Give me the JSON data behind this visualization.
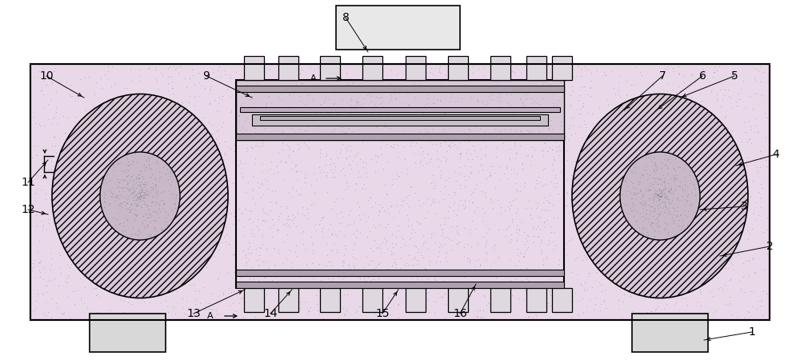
{
  "bg_color": "#ffffff",
  "body_fill": "#e8d8e8",
  "body_dot_color": "#b090b0",
  "central_fill": "#e0d8e0",
  "central_dot_color": "#908090",
  "hatch_diag_color": "#c0b0c0",
  "top_box_fill": "#e8e8e8",
  "teeth_fill": "#e0e0e0",
  "blade_fill": "#d0d0d0",
  "rail_fill": "#d8d8d8",
  "foot_fill": "#d8d8d8",
  "outer_lw": 1.5,
  "inner_lw": 1.0,
  "label_fontsize": 10,
  "annot_fontsize": 9
}
